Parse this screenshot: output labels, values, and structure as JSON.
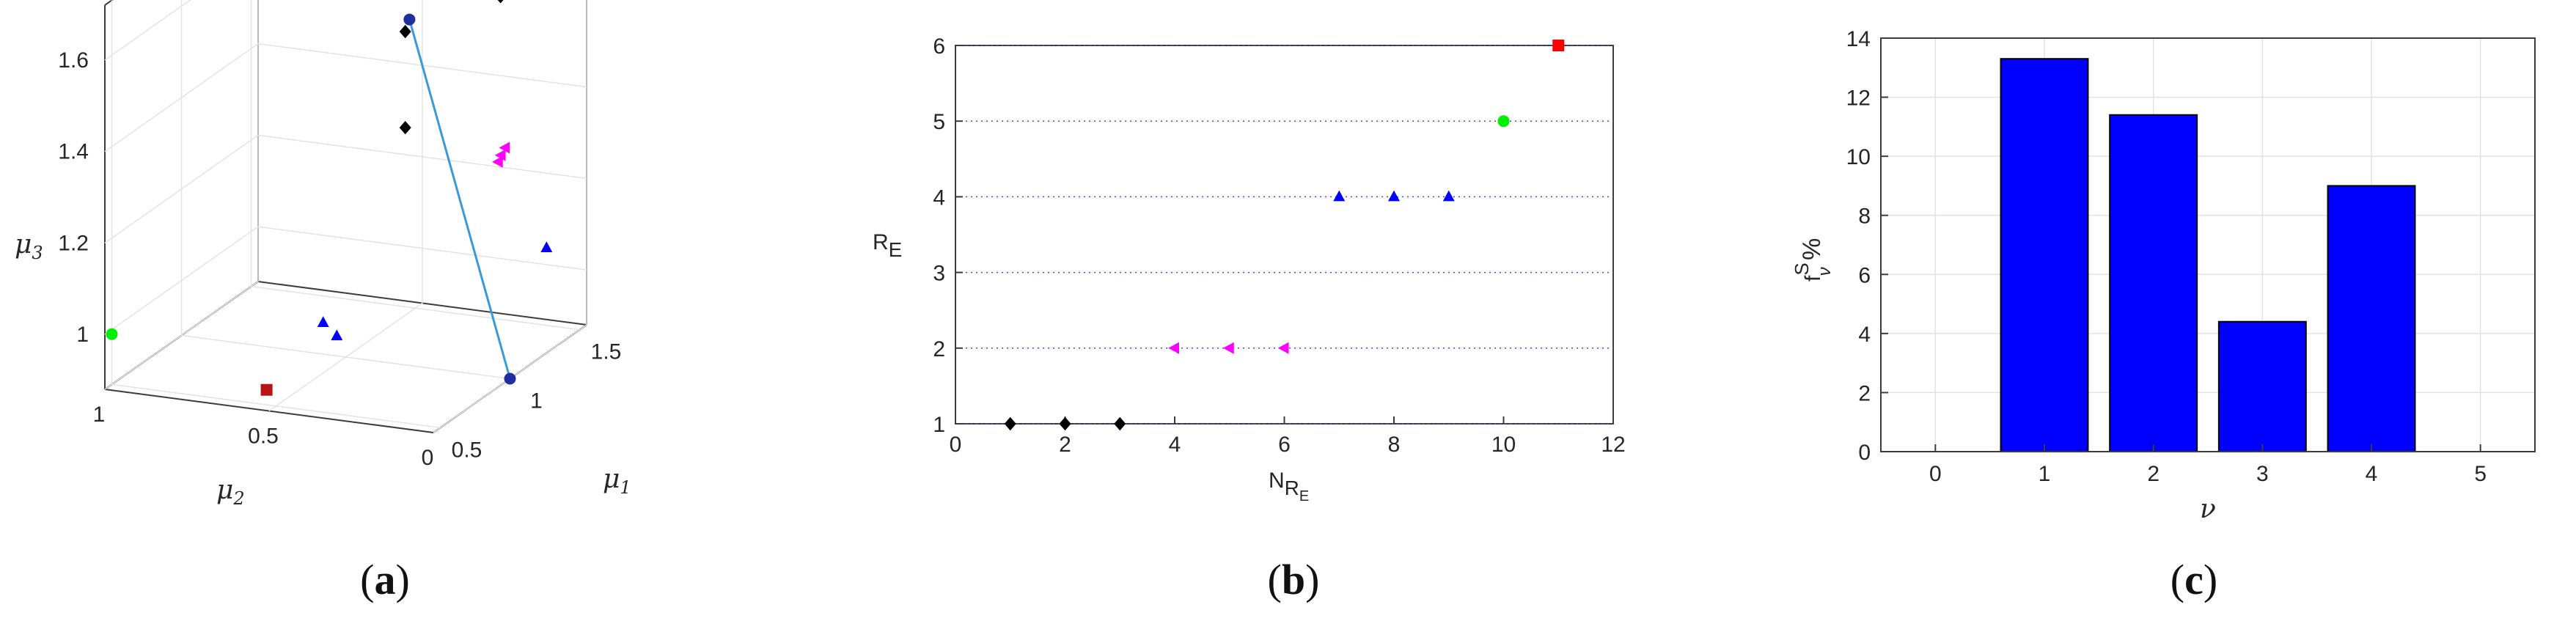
{
  "chart_data": [
    {
      "type": "scatter",
      "projection": "3d",
      "panel_label": "a",
      "xlabel": "μ1",
      "ylabel": "μ2",
      "zlabel": "μ3",
      "x_ticks": [
        "0.5",
        "1",
        "1.5"
      ],
      "y_ticks": [
        "0",
        "0.5",
        "1"
      ],
      "z_ticks": [
        "1",
        "1.2",
        "1.4",
        "1.6"
      ],
      "line": {
        "color": "#3a9ad9",
        "from": [
          1.0,
          0.0,
          0.88
        ],
        "to": [
          0.75,
          0.2,
          1.7
        ]
      },
      "points": [
        {
          "x": 1.0,
          "y": 0.0,
          "z": 0.88,
          "marker": "circle",
          "color": "#1f2f9f"
        },
        {
          "x": 0.75,
          "y": 0.2,
          "z": 1.7,
          "marker": "circle",
          "color": "#1f2f9f"
        },
        {
          "x": 0.72,
          "y": 0.2,
          "z": 1.68,
          "marker": "diamond",
          "color": "#000000"
        },
        {
          "x": 1.05,
          "y": 0.05,
          "z": 1.7,
          "marker": "diamond",
          "color": "#000000"
        },
        {
          "x": 0.72,
          "y": 0.2,
          "z": 1.47,
          "marker": "diamond",
          "color": "#000000"
        },
        {
          "x": 1.2,
          "y": 0.12,
          "z": 1.3,
          "marker": "triangle-left",
          "color": "#ff00ff"
        },
        {
          "x": 1.22,
          "y": 0.12,
          "z": 1.31,
          "marker": "triangle-left",
          "color": "#ff00ff"
        },
        {
          "x": 1.25,
          "y": 0.12,
          "z": 1.32,
          "marker": "triangle-left",
          "color": "#ff00ff"
        },
        {
          "x": 0.72,
          "y": 0.45,
          "z": 1.02,
          "marker": "triangle",
          "color": "#0000ff"
        },
        {
          "x": 0.7,
          "y": 0.4,
          "z": 1.0,
          "marker": "triangle",
          "color": "#0000ff"
        },
        {
          "x": 1.38,
          "y": 0.05,
          "z": 1.08,
          "marker": "triangle",
          "color": "#0000ff"
        },
        {
          "x": 0.5,
          "y": 1.0,
          "z": 0.99,
          "marker": "circle",
          "color": "#00ee00"
        },
        {
          "x": 0.55,
          "y": 0.55,
          "z": 0.9,
          "marker": "square",
          "color": "#b81414"
        }
      ]
    },
    {
      "type": "scatter",
      "panel_label": "b",
      "xlabel_main": "N",
      "xlabel_sub": "R",
      "xlabel_subsub": "E",
      "ylabel_main": "R",
      "ylabel_sub": "E",
      "xlim": [
        0,
        12
      ],
      "ylim": [
        1,
        6
      ],
      "x_ticks": [
        0,
        2,
        4,
        6,
        8,
        10,
        12
      ],
      "y_ticks": [
        1,
        2,
        3,
        4,
        5,
        6
      ],
      "grid": "horizontal-dotted",
      "points": [
        {
          "x": 1,
          "y": 1,
          "marker": "diamond",
          "color": "#000000"
        },
        {
          "x": 2,
          "y": 1,
          "marker": "diamond",
          "color": "#000000"
        },
        {
          "x": 3,
          "y": 1,
          "marker": "diamond",
          "color": "#000000"
        },
        {
          "x": 4,
          "y": 2,
          "marker": "triangle-left",
          "color": "#ff00ff"
        },
        {
          "x": 5,
          "y": 2,
          "marker": "triangle-left",
          "color": "#ff00ff"
        },
        {
          "x": 6,
          "y": 2,
          "marker": "triangle-left",
          "color": "#ff00ff"
        },
        {
          "x": 7,
          "y": 4,
          "marker": "triangle",
          "color": "#0000ff"
        },
        {
          "x": 8,
          "y": 4,
          "marker": "triangle",
          "color": "#0000ff"
        },
        {
          "x": 9,
          "y": 4,
          "marker": "triangle",
          "color": "#0000ff"
        },
        {
          "x": 10,
          "y": 5,
          "marker": "circle",
          "color": "#00ee00"
        },
        {
          "x": 11,
          "y": 6,
          "marker": "square",
          "color": "#ff0000"
        }
      ]
    },
    {
      "type": "bar",
      "panel_label": "c",
      "xlabel": "ν",
      "ylabel_main": "f",
      "ylabel_sup": "S",
      "ylabel_sub": "ν",
      "ylabel_suffix": "%",
      "xlim": [
        -0.5,
        5.5
      ],
      "ylim": [
        0,
        14
      ],
      "x_ticks": [
        0,
        1,
        2,
        3,
        4,
        5
      ],
      "y_ticks": [
        0,
        2,
        4,
        6,
        8,
        10,
        12,
        14
      ],
      "grid": "both",
      "bar_color": "#0000ff",
      "categories": [
        1,
        2,
        3,
        4
      ],
      "values": [
        13.3,
        11.4,
        4.4,
        9.0
      ]
    }
  ]
}
